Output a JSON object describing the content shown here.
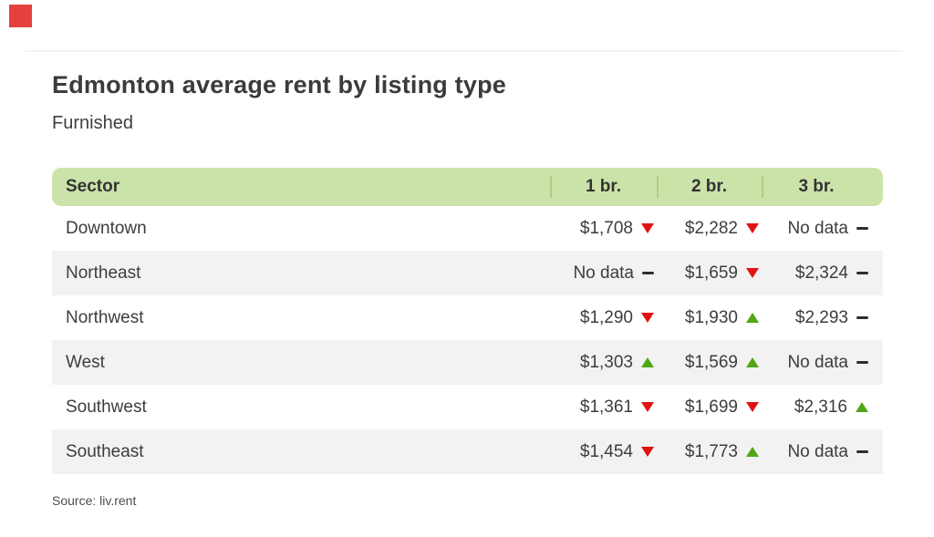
{
  "header": {
    "title": "Edmonton average rent by listing type",
    "subtitle": "Furnished"
  },
  "table": {
    "header": {
      "sector": "Sector",
      "columns": [
        "1 br.",
        "2 br.",
        "3 br."
      ]
    },
    "rows": [
      {
        "sector": "Downtown",
        "cells": [
          {
            "value": "$1,708",
            "trend": "down"
          },
          {
            "value": "$2,282",
            "trend": "down"
          },
          {
            "value": "No data",
            "trend": "flat"
          }
        ]
      },
      {
        "sector": "Northeast",
        "cells": [
          {
            "value": "No data",
            "trend": "flat"
          },
          {
            "value": "$1,659",
            "trend": "down"
          },
          {
            "value": "$2,324",
            "trend": "flat"
          }
        ]
      },
      {
        "sector": "Northwest",
        "cells": [
          {
            "value": "$1,290",
            "trend": "down"
          },
          {
            "value": "$1,930",
            "trend": "up"
          },
          {
            "value": "$2,293",
            "trend": "flat"
          }
        ]
      },
      {
        "sector": "West",
        "cells": [
          {
            "value": "$1,303",
            "trend": "up"
          },
          {
            "value": "$1,569",
            "trend": "up"
          },
          {
            "value": "No data",
            "trend": "flat"
          }
        ]
      },
      {
        "sector": "Southwest",
        "cells": [
          {
            "value": "$1,361",
            "trend": "down"
          },
          {
            "value": "$1,699",
            "trend": "down"
          },
          {
            "value": "$2,316",
            "trend": "up"
          }
        ]
      },
      {
        "sector": "Southeast",
        "cells": [
          {
            "value": "$1,454",
            "trend": "down"
          },
          {
            "value": "$1,773",
            "trend": "up"
          },
          {
            "value": "No data",
            "trend": "flat"
          }
        ]
      }
    ]
  },
  "footer": {
    "source": "Source: liv.rent"
  },
  "colors": {
    "brand_logo_red": "#e5423f",
    "header_bg_green": "#cbe3a9",
    "header_separator_green": "#a9cf7f",
    "row_alt_gray": "#f2f2f2",
    "text_dark": "#3d3d3d",
    "trend_up_green": "#50a616",
    "trend_down_red": "#e01212",
    "trend_flat_dash": "#2d2d2d"
  },
  "chart_data": {
    "type": "table",
    "title": "Edmonton average rent by listing type",
    "subtitle": "Furnished",
    "columns": [
      "Sector",
      "1 br.",
      "2 br.",
      "3 br."
    ],
    "no_data_label": "No data",
    "rows": [
      {
        "sector": "Downtown",
        "values": [
          1708,
          2282,
          null
        ],
        "trends": [
          "down",
          "down",
          "flat"
        ]
      },
      {
        "sector": "Northeast",
        "values": [
          null,
          1659,
          2324
        ],
        "trends": [
          "flat",
          "down",
          "flat"
        ]
      },
      {
        "sector": "Northwest",
        "values": [
          1290,
          1930,
          2293
        ],
        "trends": [
          "down",
          "up",
          "flat"
        ]
      },
      {
        "sector": "West",
        "values": [
          1303,
          1569,
          null
        ],
        "trends": [
          "up",
          "up",
          "flat"
        ]
      },
      {
        "sector": "Southwest",
        "values": [
          1361,
          1699,
          2316
        ],
        "trends": [
          "down",
          "down",
          "up"
        ]
      },
      {
        "sector": "Southeast",
        "values": [
          1454,
          1773,
          null
        ],
        "trends": [
          "down",
          "up",
          "flat"
        ]
      }
    ],
    "source": "Source: liv.rent",
    "legend": "triangle-up = rent increased, triangle-down = rent decreased, dash = no change / no data"
  }
}
